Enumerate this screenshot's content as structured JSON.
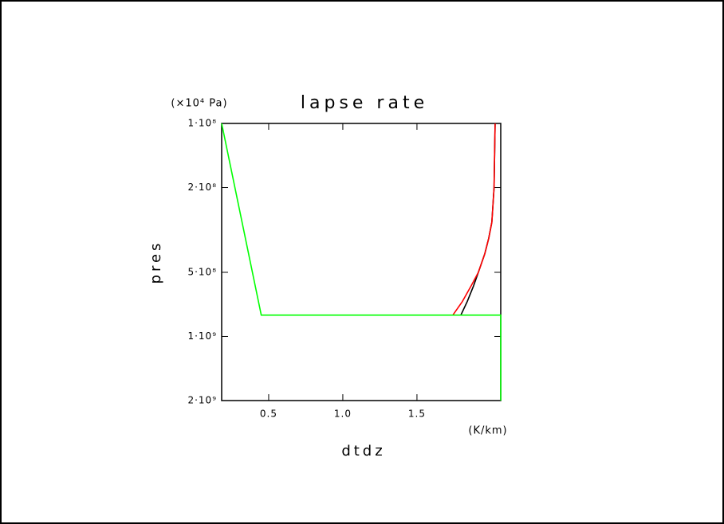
{
  "chart_data": {
    "type": "line",
    "title": "lapse rate",
    "x_label": "dtdz",
    "x_unit": "(K/km)",
    "y_label": "pres",
    "y_unit": "(×10⁴ Pa)",
    "xlim": [
      0.183,
      2.065
    ],
    "xticks": [
      0.5,
      {
        "value": 1,
        "label": "1.0"
      },
      1.5
    ],
    "ylim": [
      100000000,
      2000000000
    ],
    "y_log": true,
    "y_inverted": true,
    "yticks": [
      {
        "value": 100000000,
        "label": "1·10⁸"
      },
      {
        "value": 200000000,
        "label": "2·10⁸"
      },
      {
        "value": 500000000,
        "label": "5·10⁸"
      },
      {
        "value": 1000000000,
        "label": "1·10⁹"
      },
      {
        "value": 2000000000,
        "label": "2·10⁹"
      }
    ],
    "series": [
      {
        "color": "#000000",
        "x": [
          2.027,
          2.02,
          2.005,
          1.984,
          1.957,
          1.914,
          1.882,
          1.839,
          1.796
        ],
        "y": [
          100000000,
          200000000,
          291000000,
          346000000,
          410000000,
          500000000,
          578000000,
          686000000,
          794000000
        ]
      },
      {
        "color": "#ff0000",
        "x": [
          2.027,
          2.02,
          2.005,
          1.984,
          1.957,
          1.914,
          1.866,
          1.806,
          1.742
        ],
        "y": [
          100000000,
          200000000,
          291000000,
          346000000,
          410000000,
          500000000,
          578000000,
          686000000,
          794000000
        ]
      },
      {
        "color": "#00ff00",
        "x": [
          0.183,
          0.45,
          2.065,
          2.065
        ],
        "y": [
          100000000,
          794000000,
          794000000,
          2000000000
        ]
      }
    ]
  }
}
